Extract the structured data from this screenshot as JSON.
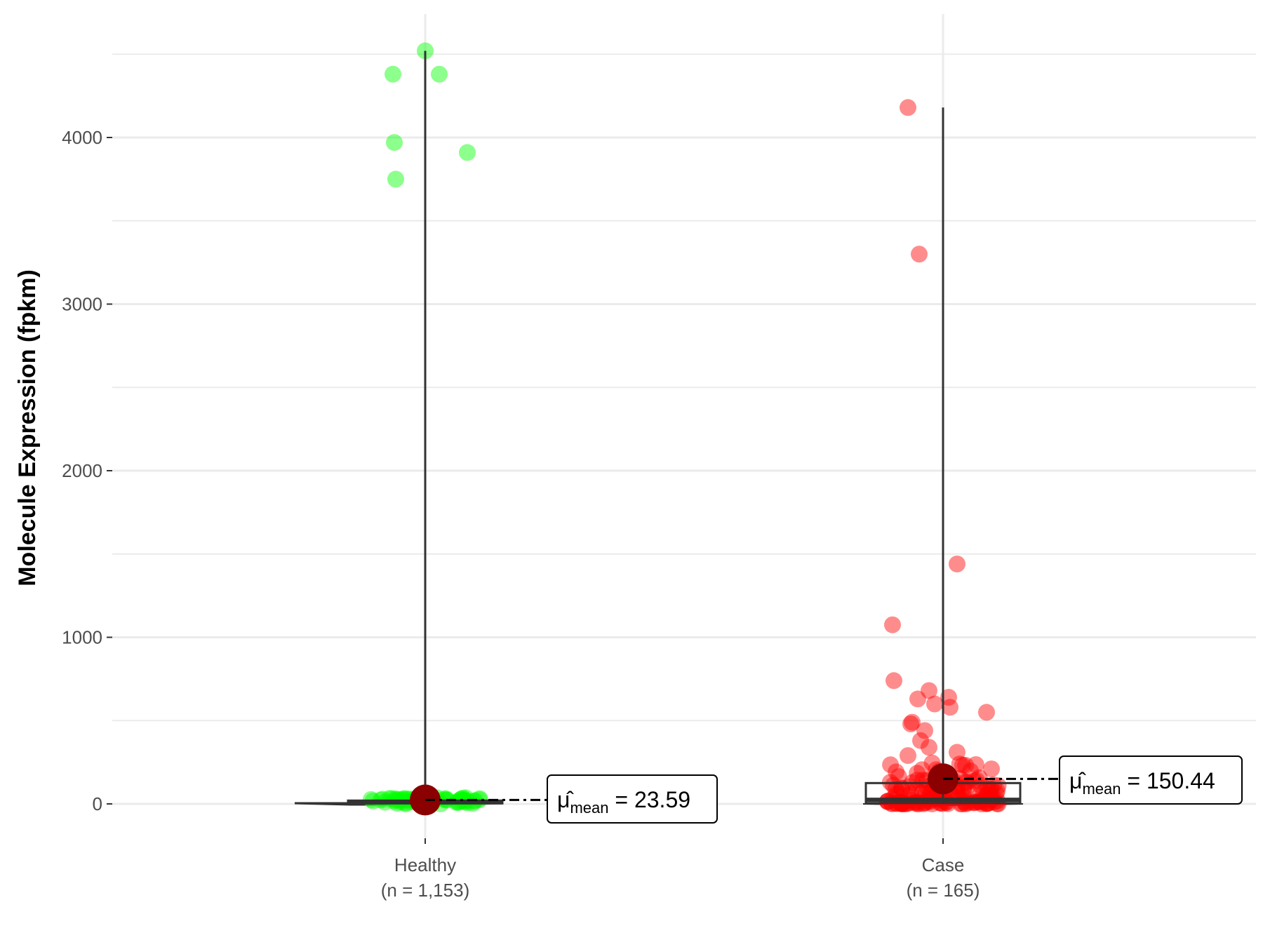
{
  "chart_data": {
    "type": "scatter",
    "subtype": "violin-box-jitter",
    "title": "",
    "xlabel": "",
    "ylabel": "Molecule Expression (fpkm)",
    "ylim": [
      -250,
      4650
    ],
    "yticks": [
      0,
      1000,
      2000,
      3000,
      4000
    ],
    "ytick_labels": [
      "0",
      "1000",
      "2000",
      "3000",
      "4000"
    ],
    "grid": true,
    "legend": "none",
    "categories": [
      {
        "name": "Healthy",
        "n_label": "(n = 1,153)"
      },
      {
        "name": "Case",
        "n_label": "(n = 165)"
      }
    ],
    "groups": [
      {
        "name": "Healthy",
        "color": "#00ff00",
        "mean": 23.59,
        "mean_label_prefix": "μ̂",
        "mean_label_sub": "mean",
        "mean_label_value": "= 23.59",
        "box": {
          "q1": 3,
          "median": 10,
          "q3": 20
        },
        "whisker": [
          0,
          4520
        ],
        "outliers": [
          4520,
          4380,
          4380,
          3970,
          3910,
          3750
        ],
        "points_near_zero_range": [
          0,
          40
        ]
      },
      {
        "name": "Case",
        "color": "#ff0000",
        "mean": 150.44,
        "mean_label_prefix": "μ̂",
        "mean_label_sub": "mean",
        "mean_label_value": "= 150.44",
        "box": {
          "q1": 5,
          "median": 25,
          "q3": 125
        },
        "whisker": [
          0,
          4180
        ],
        "outliers": [
          4180,
          3300,
          1440,
          1075,
          740,
          680,
          640,
          630,
          600,
          580,
          550,
          490,
          480,
          440,
          380,
          340,
          310,
          290
        ],
        "points_near_zero_range": [
          0,
          250
        ]
      }
    ],
    "colors": {
      "mean_point": "#8b0000",
      "grid": "#ebebeb",
      "box_stroke": "#333333"
    }
  }
}
